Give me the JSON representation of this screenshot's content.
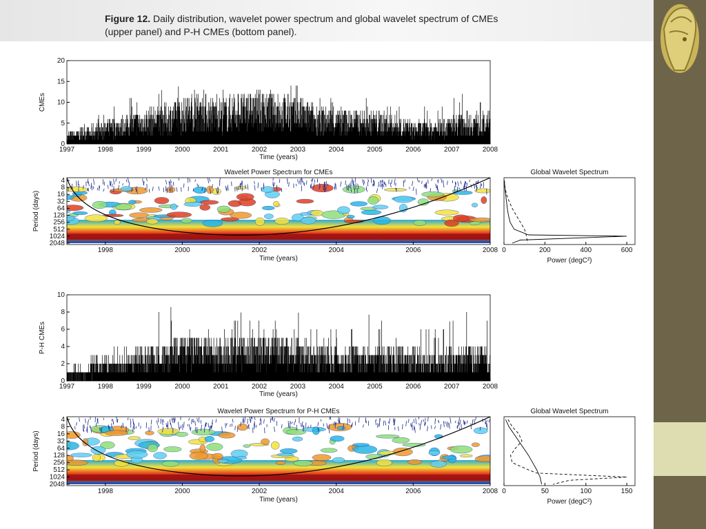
{
  "caption": {
    "figure_label": "Figure 12.",
    "line1": " Daily distribution, wavelet power spectrum and global wavelet spectrum of CMEs",
    "line2": "(upper panel) and P-H CMEs (bottom panel)."
  },
  "colors": {
    "side_bar": "#6d6449",
    "side_accent": "#dedcb1",
    "line": "#000000"
  },
  "icons": [
    "helmeted-head-logo"
  ],
  "chart_data": [
    {
      "id": "cme-daily",
      "type": "line",
      "title": "",
      "xlabel": "Time (years)",
      "ylabel": "CMEs",
      "xlim": [
        1997,
        2008
      ],
      "ylim": [
        0,
        20
      ],
      "x_ticks": [
        1997,
        1998,
        1999,
        2000,
        2001,
        2002,
        2003,
        2004,
        2005,
        2006,
        2007,
        2008
      ],
      "y_ticks": [
        0,
        5,
        10,
        15,
        20
      ],
      "series": [
        {
          "x": [
            1997.0,
            1997.5,
            1998.0,
            1998.5,
            1999.0,
            1999.5,
            2000.0,
            2000.5,
            2001.0,
            2001.5,
            2002.0,
            2002.5,
            2003.0,
            2003.5,
            2004.0,
            2004.5,
            2005.0,
            2005.5,
            2006.0,
            2006.5,
            2007.0,
            2007.5,
            2008.0
          ],
          "y": [
            2,
            3,
            4,
            5,
            6,
            7,
            8,
            9,
            8,
            9,
            9,
            9,
            8,
            7,
            6,
            6,
            6,
            5,
            4,
            4,
            5,
            6,
            5
          ],
          "y_max": [
            3,
            5,
            9,
            11,
            12,
            13,
            14,
            13,
            13,
            14,
            13,
            13,
            16,
            12,
            11,
            10,
            12,
            10,
            9,
            9,
            13,
            12,
            9
          ]
        }
      ]
    },
    {
      "id": "cme-wavelet",
      "type": "heatmap",
      "title": "Wavelet Power Spectrum for CMEs",
      "xlabel": "Time (years)",
      "ylabel": "Period (days)",
      "x_ticks": [
        1998,
        2000,
        2002,
        2004,
        2006,
        2008
      ],
      "y_ticks": [
        4,
        8,
        16,
        32,
        64,
        128,
        256,
        512,
        1024,
        2048
      ],
      "xlim": [
        1997,
        2008
      ]
    },
    {
      "id": "cme-global",
      "type": "line",
      "title": "Global Wavelet Spectrum",
      "xlabel": "Power (degC²)",
      "x_ticks": [
        0,
        200,
        400,
        600
      ],
      "xlim": [
        0,
        640
      ],
      "ylim_period": [
        2048,
        2
      ],
      "series": [
        {
          "style": "solid",
          "period": [
            4,
            8,
            16,
            32,
            64,
            128,
            256,
            512,
            900,
            1024,
            1500,
            2048
          ],
          "power": [
            2,
            4,
            8,
            12,
            16,
            22,
            30,
            50,
            120,
            600,
            80,
            40
          ]
        },
        {
          "style": "dashed",
          "period": [
            4,
            8,
            16,
            32,
            64,
            128,
            256,
            512,
            1024,
            2048
          ],
          "power": [
            1,
            5,
            12,
            25,
            40,
            60,
            80,
            100,
            110,
            115
          ]
        }
      ]
    },
    {
      "id": "ph-cme-daily",
      "type": "line",
      "title": "",
      "xlabel": "Time (years)",
      "ylabel": "P-H CMEs",
      "xlim": [
        1997,
        2008
      ],
      "ylim": [
        0,
        10
      ],
      "x_ticks": [
        1997,
        1998,
        1999,
        2000,
        2001,
        2002,
        2003,
        2004,
        2005,
        2006,
        2007,
        2008
      ],
      "y_ticks": [
        0,
        2,
        4,
        6,
        8,
        10
      ],
      "series": [
        {
          "x": [
            1997.0,
            1997.5,
            1998.0,
            1998.5,
            1999.0,
            1999.5,
            2000.0,
            2000.5,
            2001.0,
            2001.5,
            2002.0,
            2002.5,
            2003.0,
            2003.5,
            2004.0,
            2004.5,
            2005.0,
            2005.5,
            2006.0,
            2006.5,
            2007.0,
            2007.5,
            2008.0
          ],
          "y": [
            1,
            1,
            2,
            2,
            3,
            3,
            4,
            4,
            4,
            4,
            4,
            4,
            4,
            3,
            3,
            3,
            3,
            3,
            3,
            2,
            3,
            3,
            3
          ],
          "y_max": [
            2,
            3,
            4,
            5,
            6,
            9,
            8,
            8,
            8,
            8,
            7,
            8,
            8,
            6,
            6,
            7,
            8,
            6,
            6,
            6,
            7,
            9,
            7
          ]
        }
      ]
    },
    {
      "id": "ph-cme-wavelet",
      "type": "heatmap",
      "title": "Wavelet Power Spectrum for P-H CMEs",
      "xlabel": "Time (years)",
      "ylabel": "Period (days)",
      "x_ticks": [
        1998,
        2000,
        2002,
        2004,
        2006,
        2008
      ],
      "y_ticks": [
        4,
        8,
        16,
        32,
        64,
        128,
        256,
        512,
        1024,
        2048
      ],
      "xlim": [
        1997,
        2008
      ]
    },
    {
      "id": "ph-cme-global",
      "type": "line",
      "title": "Global Wavelet Spectrum",
      "xlabel": "Power (degC²)",
      "x_ticks": [
        0,
        50,
        100,
        150
      ],
      "xlim": [
        0,
        160
      ],
      "ylim_period": [
        2048,
        2
      ],
      "series": [
        {
          "style": "solid",
          "period": [
            4,
            8,
            16,
            32,
            64,
            128,
            256,
            512,
            1024,
            2048
          ],
          "power": [
            2,
            6,
            12,
            18,
            24,
            30,
            35,
            40,
            44,
            46
          ]
        },
        {
          "style": "dashed",
          "period": [
            4,
            8,
            16,
            32,
            64,
            128,
            256,
            512,
            700,
            1024,
            1400,
            2048
          ],
          "power": [
            5,
            10,
            18,
            22,
            14,
            8,
            10,
            30,
            40,
            150,
            80,
            60
          ]
        }
      ]
    }
  ]
}
